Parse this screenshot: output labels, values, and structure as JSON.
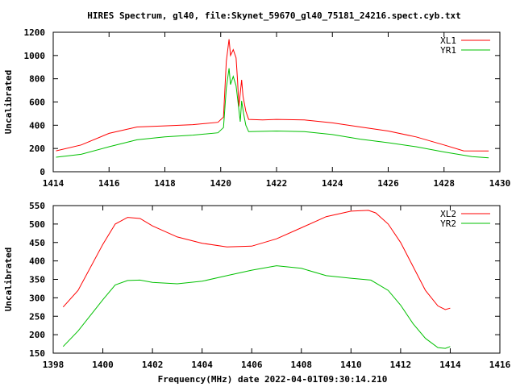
{
  "title": "HIRES Spectrum, gl40, file:Skynet_59670_gl40_75181_24216.spect.cyb.txt",
  "xlabel": "Frequency(MHz) date 2022-04-01T09:30:14.210",
  "colors": {
    "red": "#ff0000",
    "green": "#00c000"
  },
  "chart_data": [
    {
      "type": "line",
      "ylabel": "Uncalibrated",
      "xlim": [
        1414,
        1430
      ],
      "ylim": [
        0,
        1200
      ],
      "xticks": [
        1414,
        1416,
        1418,
        1420,
        1422,
        1424,
        1426,
        1428,
        1430
      ],
      "yticks": [
        0,
        200,
        400,
        600,
        800,
        1000,
        1200
      ],
      "legend": "top-right",
      "series": [
        {
          "name": "XL1",
          "color": "#ff0000",
          "x": [
            1414.1,
            1415,
            1416,
            1417,
            1418,
            1419,
            1419.9,
            1420.1,
            1420.2,
            1420.3,
            1420.35,
            1420.45,
            1420.55,
            1420.6,
            1420.65,
            1420.75,
            1420.8,
            1420.9,
            1421,
            1421.5,
            1422,
            1423,
            1424,
            1425,
            1426,
            1427,
            1428,
            1428.7,
            1429.6
          ],
          "y": [
            180,
            230,
            330,
            385,
            395,
            405,
            425,
            470,
            950,
            1140,
            1000,
            1050,
            980,
            800,
            560,
            790,
            650,
            520,
            450,
            445,
            450,
            445,
            420,
            385,
            350,
            300,
            230,
            180,
            178
          ]
        },
        {
          "name": "YR1",
          "color": "#00c000",
          "x": [
            1414.1,
            1415,
            1416,
            1417,
            1418,
            1419,
            1419.9,
            1420.1,
            1420.2,
            1420.3,
            1420.35,
            1420.45,
            1420.55,
            1420.62,
            1420.7,
            1420.75,
            1420.82,
            1420.9,
            1421,
            1422,
            1423,
            1424,
            1425,
            1426,
            1427,
            1428,
            1429,
            1429.6
          ],
          "y": [
            125,
            150,
            215,
            275,
            300,
            315,
            335,
            380,
            720,
            890,
            750,
            820,
            740,
            600,
            430,
            610,
            500,
            400,
            345,
            350,
            345,
            320,
            280,
            250,
            215,
            170,
            130,
            120
          ]
        }
      ]
    },
    {
      "type": "line",
      "ylabel": "Uncalibrated",
      "xlim": [
        1398,
        1416
      ],
      "ylim": [
        150,
        550
      ],
      "xticks": [
        1398,
        1400,
        1402,
        1404,
        1406,
        1408,
        1410,
        1412,
        1414,
        1416
      ],
      "yticks": [
        150,
        200,
        250,
        300,
        350,
        400,
        450,
        500,
        550
      ],
      "legend": "top-right",
      "series": [
        {
          "name": "XL2",
          "color": "#ff0000",
          "x": [
            1398.4,
            1399,
            1400,
            1400.5,
            1401,
            1401.5,
            1402,
            1403,
            1404,
            1405,
            1406,
            1407,
            1408,
            1409,
            1410,
            1410.7,
            1411,
            1411.5,
            1412,
            1412.5,
            1413,
            1413.5,
            1413.8,
            1414
          ],
          "y": [
            275,
            320,
            445,
            500,
            518,
            515,
            495,
            465,
            448,
            438,
            440,
            460,
            490,
            520,
            535,
            537,
            530,
            500,
            450,
            385,
            320,
            278,
            268,
            272
          ]
        },
        {
          "name": "YR2",
          "color": "#00c000",
          "x": [
            1398.4,
            1399,
            1400,
            1400.5,
            1401,
            1401.5,
            1402,
            1403,
            1404,
            1405,
            1406,
            1407,
            1408,
            1409,
            1410,
            1410.8,
            1411.5,
            1412,
            1412.5,
            1413,
            1413.5,
            1413.8,
            1414
          ],
          "y": [
            168,
            210,
            295,
            335,
            347,
            348,
            342,
            338,
            345,
            360,
            375,
            387,
            380,
            360,
            353,
            348,
            320,
            280,
            230,
            190,
            165,
            163,
            168
          ]
        }
      ]
    }
  ]
}
